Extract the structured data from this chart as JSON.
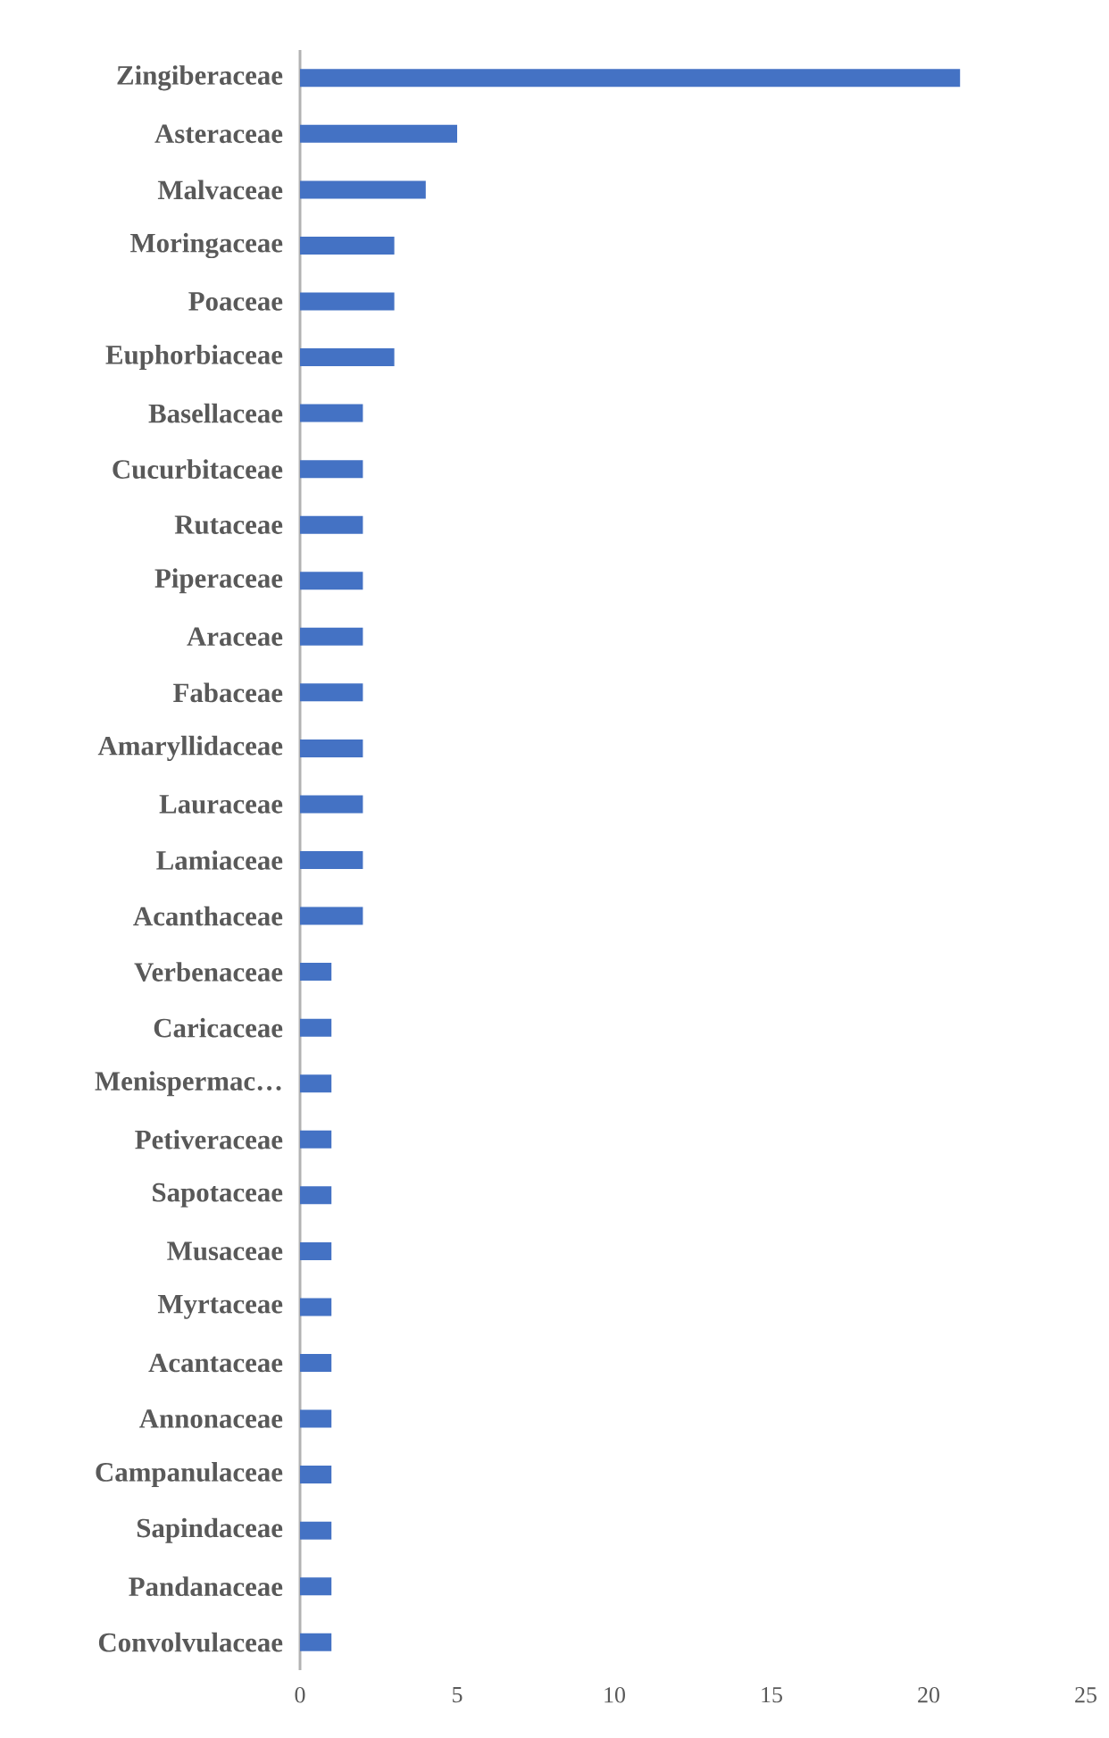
{
  "chart_data": {
    "type": "bar",
    "orientation": "horizontal",
    "categories": [
      "Zingiberaceae",
      "Asteraceae",
      "Malvaceae",
      "Moringaceae",
      "Poaceae",
      "Euphorbiaceae",
      "Basellaceae",
      "Cucurbitaceae",
      "Rutaceae",
      "Piperaceae",
      "Araceae",
      "Fabaceae",
      "Amaryllidaceae",
      "Lauraceae",
      "Lamiaceae",
      "Acanthaceae",
      "Verbenaceae",
      "Caricaceae",
      "Menispermac…",
      "Petiveraceae",
      "Sapotaceae",
      "Musaceae",
      "Myrtaceae",
      "Acantaceae",
      "Annonaceae",
      "Campanulaceae",
      "Sapindaceae",
      "Pandanaceae",
      "Convolvulaceae"
    ],
    "values": [
      21,
      5,
      4,
      3,
      3,
      3,
      2,
      2,
      2,
      2,
      2,
      2,
      2,
      2,
      2,
      2,
      1,
      1,
      1,
      1,
      1,
      1,
      1,
      1,
      1,
      1,
      1,
      1,
      1
    ],
    "color": "#4472c4",
    "xlim": [
      0,
      25
    ],
    "xticks": [
      0,
      5,
      10,
      15,
      20,
      25
    ]
  }
}
